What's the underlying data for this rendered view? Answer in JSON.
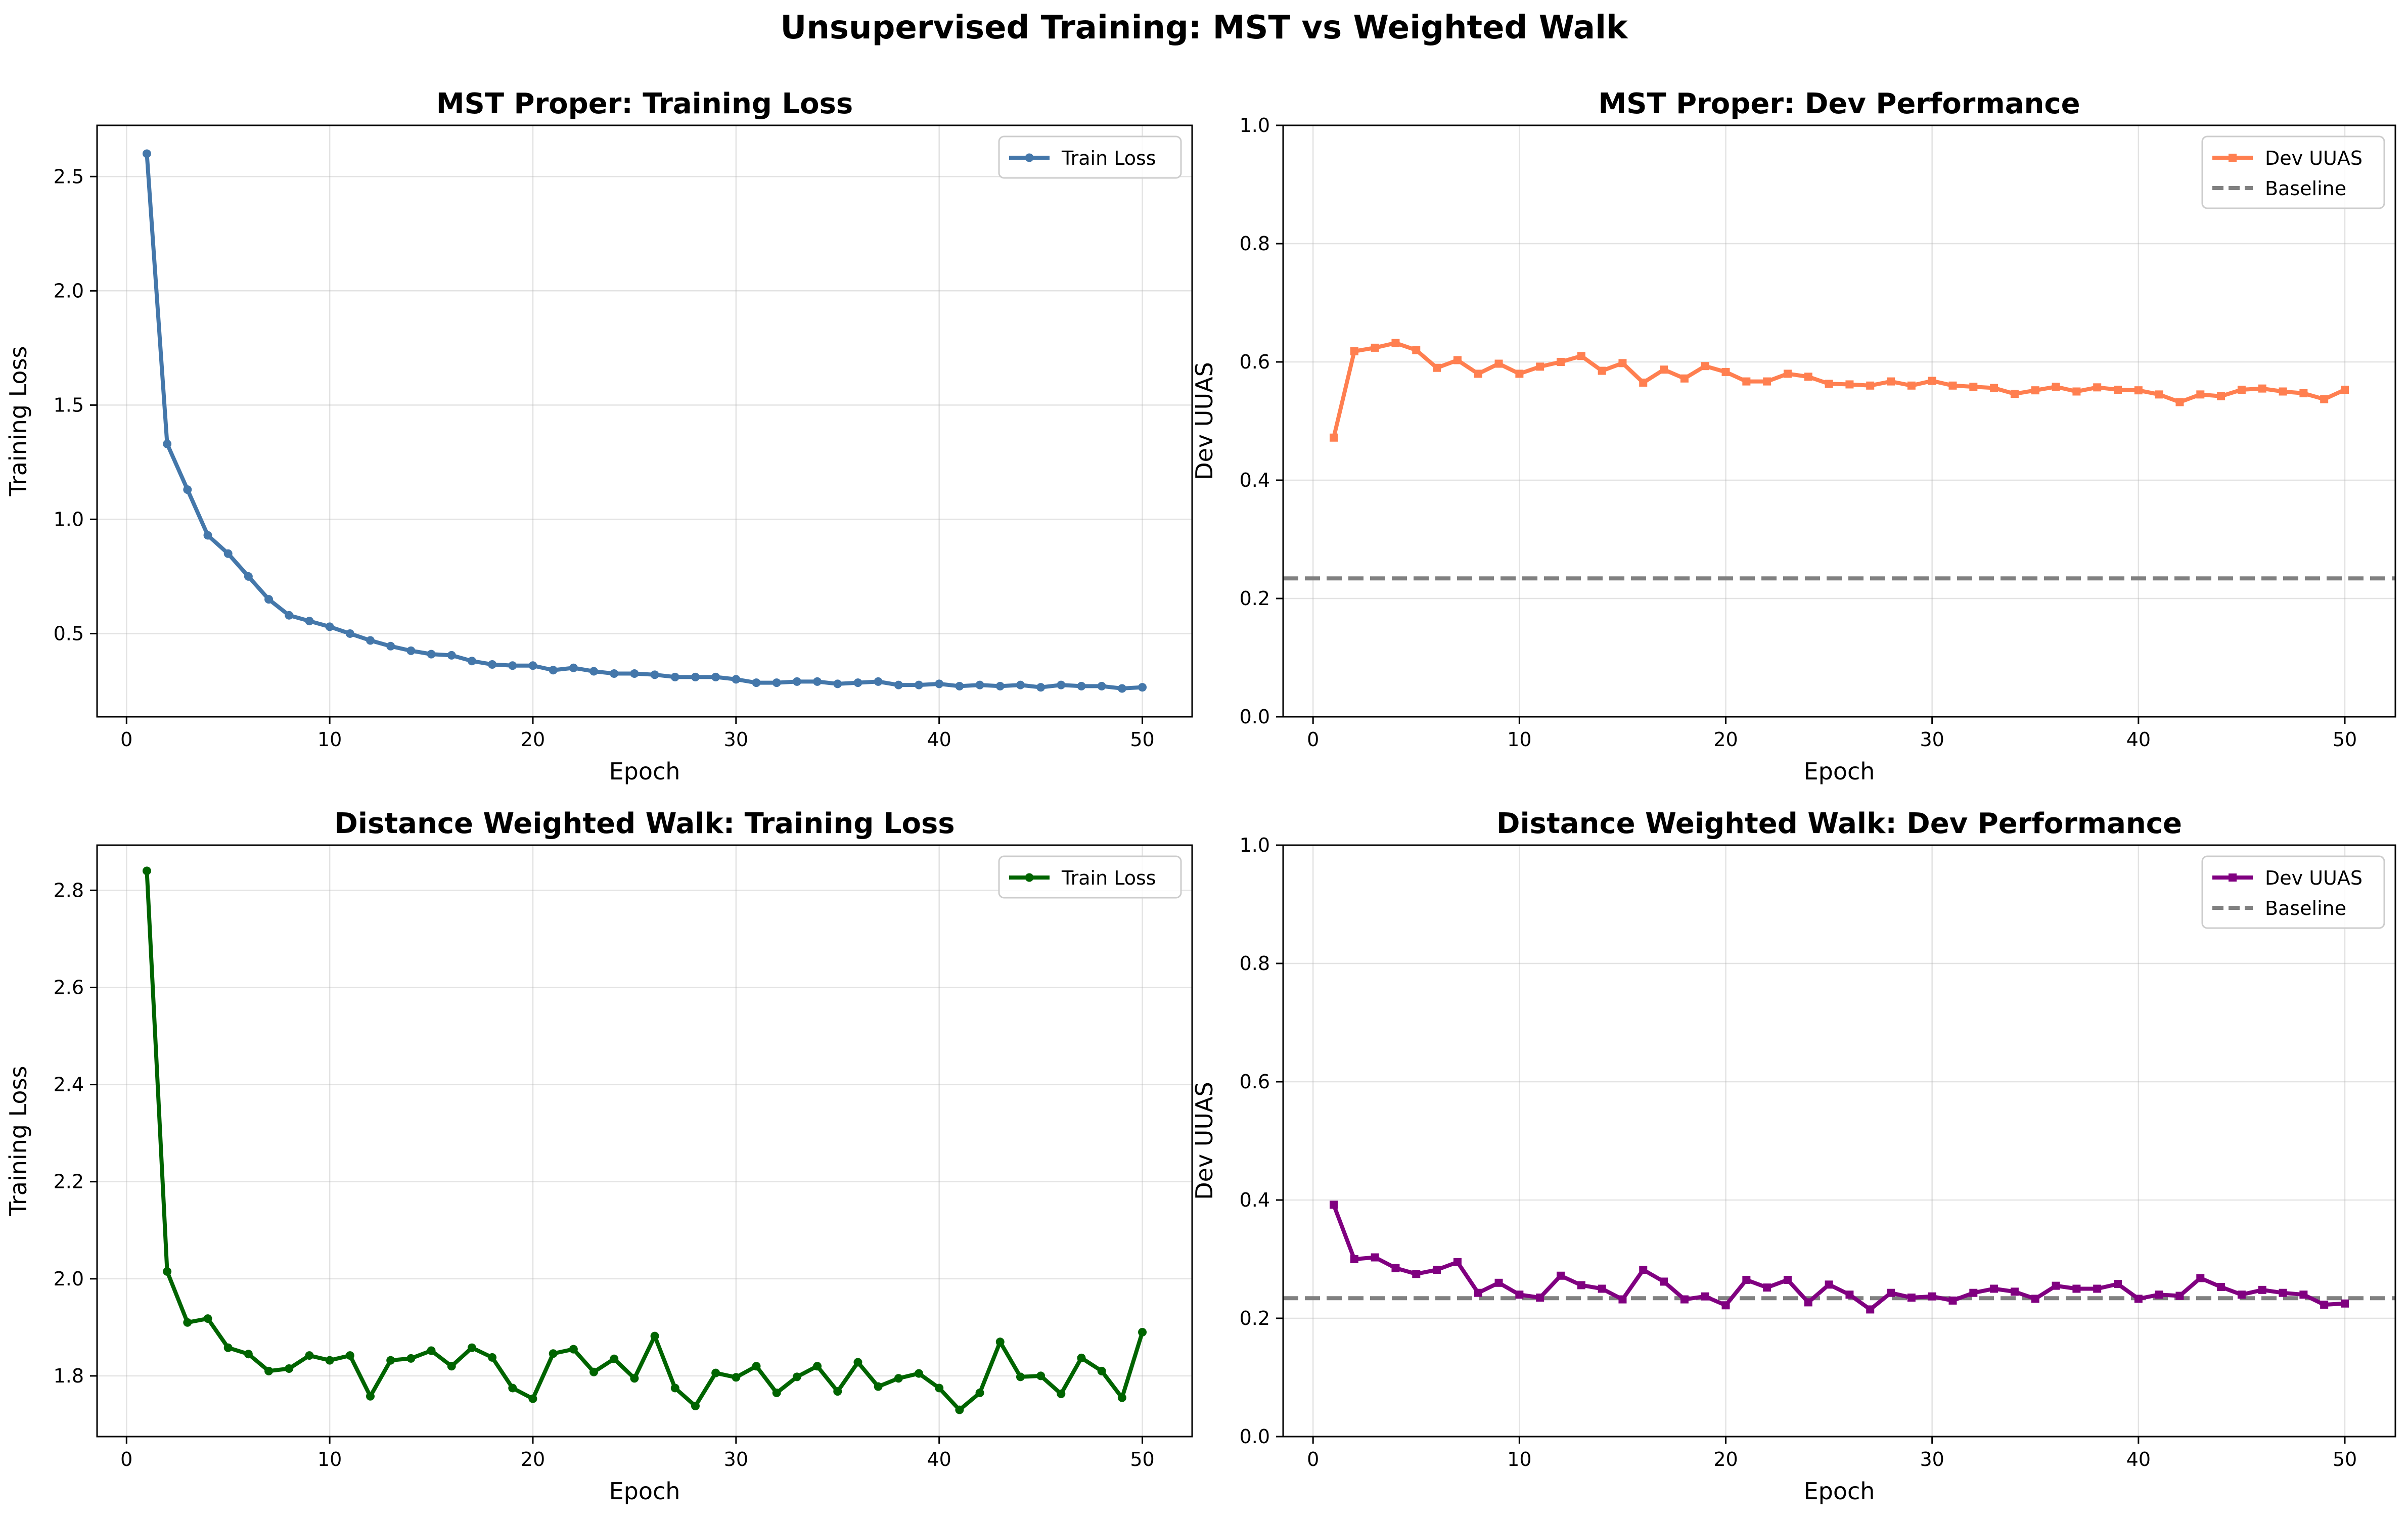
{
  "figure": {
    "title": "Unsupervised Training: MST vs Weighted Walk"
  },
  "chart_data": [
    {
      "id": "p1",
      "type": "line",
      "title": "MST Proper: Training Loss",
      "xlabel": "Epoch",
      "ylabel": "Training Loss",
      "xlim": [
        -1.45,
        52.45
      ],
      "ylim": [
        0.136,
        2.724
      ],
      "xticks": [
        0,
        10,
        20,
        30,
        40,
        50
      ],
      "yticks": [
        0.5,
        1.0,
        1.5,
        2.0,
        2.5
      ],
      "ytick_labels": [
        "0.5",
        "1.0",
        "1.5",
        "2.0",
        "2.5"
      ],
      "grid": true,
      "legend": "upper right",
      "series": [
        {
          "name": "Train Loss",
          "color": "#4477aa",
          "marker": "circle",
          "x": [
            1,
            2,
            3,
            4,
            5,
            6,
            7,
            8,
            9,
            10,
            11,
            12,
            13,
            14,
            15,
            16,
            17,
            18,
            19,
            20,
            21,
            22,
            23,
            24,
            25,
            26,
            27,
            28,
            29,
            30,
            31,
            32,
            33,
            34,
            35,
            36,
            37,
            38,
            39,
            40,
            41,
            42,
            43,
            44,
            45,
            46,
            47,
            48,
            49,
            50
          ],
          "y": [
            2.6,
            1.33,
            1.13,
            0.93,
            0.85,
            0.75,
            0.65,
            0.58,
            0.555,
            0.53,
            0.5,
            0.47,
            0.445,
            0.425,
            0.41,
            0.405,
            0.38,
            0.365,
            0.36,
            0.36,
            0.34,
            0.35,
            0.335,
            0.325,
            0.325,
            0.32,
            0.31,
            0.31,
            0.31,
            0.3,
            0.285,
            0.285,
            0.29,
            0.29,
            0.28,
            0.285,
            0.29,
            0.275,
            0.275,
            0.28,
            0.27,
            0.275,
            0.27,
            0.275,
            0.265,
            0.275,
            0.27,
            0.27,
            0.26,
            0.265
          ]
        }
      ]
    },
    {
      "id": "p2",
      "type": "line",
      "title": "MST Proper: Dev Performance",
      "xlabel": "Epoch",
      "ylabel": "Dev UUAS",
      "xlim": [
        -1.45,
        52.45
      ],
      "ylim": [
        0.0,
        1.0
      ],
      "xticks": [
        0,
        10,
        20,
        30,
        40,
        50
      ],
      "yticks": [
        0.0,
        0.2,
        0.4,
        0.6,
        0.8,
        1.0
      ],
      "ytick_labels": [
        "0.0",
        "0.2",
        "0.4",
        "0.6",
        "0.8",
        "1.0"
      ],
      "grid": true,
      "legend": "upper right",
      "baseline": {
        "name": "Baseline",
        "value": 0.234,
        "color": "#808080"
      },
      "series": [
        {
          "name": "Dev UUAS",
          "color": "#ff7f50",
          "marker": "square",
          "x": [
            1,
            2,
            3,
            4,
            5,
            6,
            7,
            8,
            9,
            10,
            11,
            12,
            13,
            14,
            15,
            16,
            17,
            18,
            19,
            20,
            21,
            22,
            23,
            24,
            25,
            26,
            27,
            28,
            29,
            30,
            31,
            32,
            33,
            34,
            35,
            36,
            37,
            38,
            39,
            40,
            41,
            42,
            43,
            44,
            45,
            46,
            47,
            48,
            49,
            50
          ],
          "y": [
            0.472,
            0.618,
            0.624,
            0.632,
            0.62,
            0.59,
            0.603,
            0.58,
            0.597,
            0.58,
            0.592,
            0.6,
            0.61,
            0.585,
            0.598,
            0.565,
            0.587,
            0.572,
            0.593,
            0.583,
            0.567,
            0.567,
            0.58,
            0.575,
            0.563,
            0.562,
            0.56,
            0.567,
            0.56,
            0.568,
            0.56,
            0.558,
            0.556,
            0.546,
            0.552,
            0.558,
            0.55,
            0.557,
            0.553,
            0.552,
            0.545,
            0.532,
            0.545,
            0.542,
            0.553,
            0.555,
            0.55,
            0.547,
            0.537,
            0.553
          ]
        }
      ]
    },
    {
      "id": "p3",
      "type": "line",
      "title": "Distance Weighted Walk: Training Loss",
      "xlabel": "Epoch",
      "ylabel": "Training Loss",
      "xlim": [
        -1.45,
        52.45
      ],
      "ylim": [
        1.675,
        2.893
      ],
      "xticks": [
        0,
        10,
        20,
        30,
        40,
        50
      ],
      "yticks": [
        1.8,
        2.0,
        2.2,
        2.4,
        2.6,
        2.8
      ],
      "ytick_labels": [
        "1.8",
        "2.0",
        "2.2",
        "2.4",
        "2.6",
        "2.8"
      ],
      "grid": true,
      "legend": "upper right",
      "series": [
        {
          "name": "Train Loss",
          "color": "#006400",
          "marker": "circle",
          "x": [
            1,
            2,
            3,
            4,
            5,
            6,
            7,
            8,
            9,
            10,
            11,
            12,
            13,
            14,
            15,
            16,
            17,
            18,
            19,
            20,
            21,
            22,
            23,
            24,
            25,
            26,
            27,
            28,
            29,
            30,
            31,
            32,
            33,
            34,
            35,
            36,
            37,
            38,
            39,
            40,
            41,
            42,
            43,
            44,
            45,
            46,
            47,
            48,
            49,
            50
          ],
          "y": [
            2.84,
            2.015,
            1.91,
            1.918,
            1.858,
            1.845,
            1.81,
            1.815,
            1.842,
            1.832,
            1.842,
            1.758,
            1.832,
            1.836,
            1.852,
            1.82,
            1.858,
            1.838,
            1.775,
            1.753,
            1.846,
            1.855,
            1.808,
            1.835,
            1.795,
            1.882,
            1.775,
            1.738,
            1.806,
            1.797,
            1.82,
            1.765,
            1.798,
            1.82,
            1.768,
            1.828,
            1.778,
            1.795,
            1.805,
            1.775,
            1.73,
            1.765,
            1.87,
            1.798,
            1.8,
            1.763,
            1.837,
            1.81,
            1.755,
            1.89
          ]
        }
      ]
    },
    {
      "id": "p4",
      "type": "line",
      "title": "Distance Weighted Walk: Dev Performance",
      "xlabel": "Epoch",
      "ylabel": "Dev UUAS",
      "xlim": [
        -1.45,
        52.45
      ],
      "ylim": [
        0.0,
        1.0
      ],
      "xticks": [
        0,
        10,
        20,
        30,
        40,
        50
      ],
      "yticks": [
        0.0,
        0.2,
        0.4,
        0.6,
        0.8,
        1.0
      ],
      "ytick_labels": [
        "0.0",
        "0.2",
        "0.4",
        "0.6",
        "0.8",
        "1.0"
      ],
      "grid": true,
      "legend": "upper right",
      "baseline": {
        "name": "Baseline",
        "value": 0.234,
        "color": "#808080"
      },
      "series": [
        {
          "name": "Dev UUAS",
          "color": "#800080",
          "marker": "square",
          "x": [
            1,
            2,
            3,
            4,
            5,
            6,
            7,
            8,
            9,
            10,
            11,
            12,
            13,
            14,
            15,
            16,
            17,
            18,
            19,
            20,
            21,
            22,
            23,
            24,
            25,
            26,
            27,
            28,
            29,
            30,
            31,
            32,
            33,
            34,
            35,
            36,
            37,
            38,
            39,
            40,
            41,
            42,
            43,
            44,
            45,
            46,
            47,
            48,
            49,
            50
          ],
          "y": [
            0.392,
            0.3,
            0.303,
            0.285,
            0.275,
            0.282,
            0.295,
            0.243,
            0.26,
            0.24,
            0.235,
            0.272,
            0.256,
            0.25,
            0.232,
            0.282,
            0.262,
            0.232,
            0.237,
            0.222,
            0.265,
            0.252,
            0.265,
            0.227,
            0.257,
            0.24,
            0.215,
            0.243,
            0.235,
            0.237,
            0.23,
            0.243,
            0.25,
            0.245,
            0.233,
            0.255,
            0.25,
            0.25,
            0.258,
            0.233,
            0.24,
            0.238,
            0.268,
            0.253,
            0.24,
            0.248,
            0.243,
            0.24,
            0.223,
            0.225
          ]
        }
      ]
    }
  ]
}
